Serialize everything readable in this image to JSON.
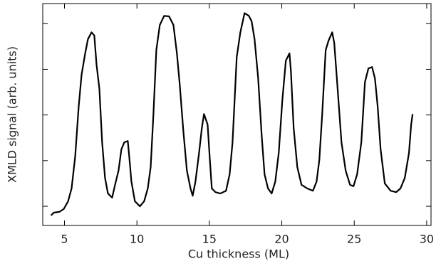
{
  "chart_data": {
    "type": "line",
    "xlabel": "Cu thickness (ML)",
    "ylabel": "XMLD signal (arb. units)",
    "color": "#000000",
    "xlim": [
      3.5,
      30.3
    ],
    "xticks": [
      5,
      10,
      15,
      20,
      25,
      30
    ],
    "ylim": [
      0.58,
      5.44
    ],
    "yticks": [
      1,
      2,
      3,
      4,
      5
    ],
    "x": [
      4.07,
      4.26,
      4.66,
      4.95,
      5.25,
      5.49,
      5.74,
      5.98,
      6.18,
      6.43,
      6.62,
      6.87,
      7.06,
      7.21,
      7.41,
      7.6,
      7.8,
      8.0,
      8.29,
      8.49,
      8.73,
      8.93,
      9.13,
      9.37,
      9.47,
      9.62,
      9.86,
      10.21,
      10.5,
      10.75,
      10.95,
      11.14,
      11.34,
      11.58,
      11.88,
      12.22,
      12.52,
      12.76,
      12.96,
      13.21,
      13.45,
      13.7,
      13.85,
      14.04,
      14.29,
      14.48,
      14.63,
      14.88,
      15.02,
      15.17,
      15.42,
      15.76,
      16.15,
      16.4,
      16.6,
      16.89,
      17.14,
      17.43,
      17.73,
      17.92,
      18.12,
      18.37,
      18.61,
      18.81,
      19.05,
      19.3,
      19.55,
      19.79,
      20.04,
      20.28,
      20.53,
      20.63,
      20.82,
      21.07,
      21.36,
      21.76,
      22.15,
      22.4,
      22.59,
      22.79,
      23.03,
      23.23,
      23.48,
      23.62,
      23.82,
      24.12,
      24.41,
      24.71,
      24.95,
      25.2,
      25.49,
      25.74,
      25.98,
      26.23,
      26.43,
      26.62,
      26.82,
      27.11,
      27.51,
      27.9,
      28.19,
      28.49,
      28.78,
      28.93,
      29.03
    ],
    "values": [
      0.8,
      0.86,
      0.88,
      0.94,
      1.11,
      1.39,
      2.09,
      3.18,
      3.88,
      4.35,
      4.66,
      4.81,
      4.74,
      4.11,
      3.57,
      2.4,
      1.62,
      1.28,
      1.19,
      1.47,
      1.78,
      2.25,
      2.4,
      2.43,
      2.09,
      1.54,
      1.11,
      1.0,
      1.11,
      1.39,
      1.86,
      3.02,
      4.42,
      4.97,
      5.17,
      5.16,
      4.97,
      4.35,
      3.65,
      2.63,
      1.78,
      1.39,
      1.23,
      1.54,
      2.17,
      2.71,
      3.02,
      2.79,
      2.09,
      1.39,
      1.31,
      1.28,
      1.34,
      1.7,
      2.4,
      4.27,
      4.81,
      5.23,
      5.17,
      5.05,
      4.66,
      3.8,
      2.56,
      1.7,
      1.39,
      1.28,
      1.54,
      2.17,
      3.33,
      4.19,
      4.35,
      3.96,
      2.71,
      1.86,
      1.47,
      1.39,
      1.34,
      1.54,
      2.01,
      3.02,
      4.42,
      4.63,
      4.81,
      4.58,
      3.72,
      2.4,
      1.78,
      1.47,
      1.44,
      1.7,
      2.4,
      3.72,
      4.02,
      4.05,
      3.8,
      3.18,
      2.25,
      1.5,
      1.34,
      1.31,
      1.39,
      1.62,
      2.17,
      2.79,
      3.02
    ]
  }
}
